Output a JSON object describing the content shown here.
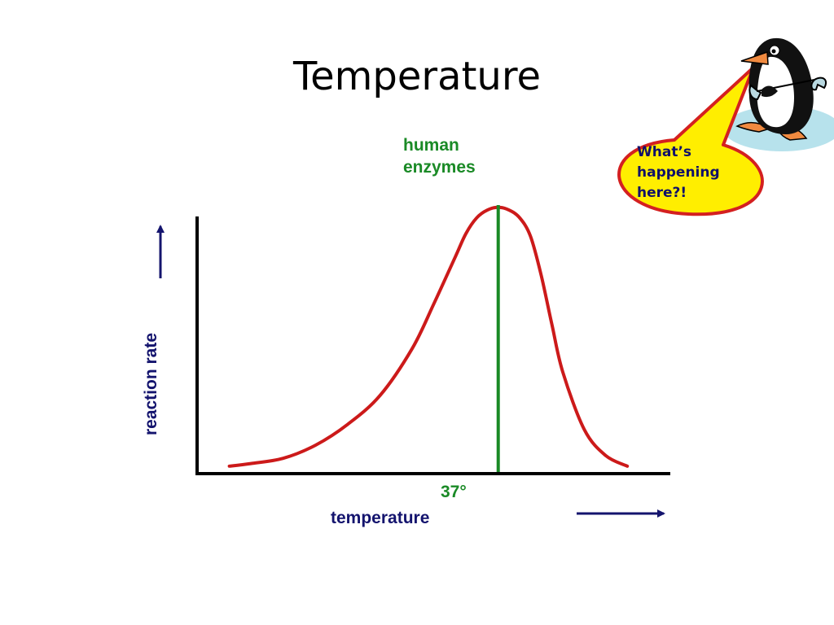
{
  "title": "Temperature",
  "mascot": {
    "bubble_lines": [
      "What’s",
      "happening",
      "here?!"
    ],
    "icon": "penguin-with-wrench-icon",
    "bubble_color": "#ffee00",
    "bubble_border": "#d42020"
  },
  "chart_data": {
    "type": "line",
    "ylabel": "reaction rate",
    "xlabel": "temperature",
    "series_label_lines": [
      "human",
      "enzymes"
    ],
    "marker_value": 37,
    "marker_label": "37°",
    "x": [
      12,
      14,
      17,
      20,
      23,
      26,
      29,
      31,
      33,
      34,
      35,
      36,
      37,
      38,
      39,
      40,
      41,
      42,
      43,
      45,
      47,
      49
    ],
    "values": [
      1,
      2,
      4,
      9,
      17,
      28,
      46,
      63,
      81,
      90,
      96,
      99,
      100,
      99,
      96,
      89,
      74,
      55,
      37,
      15,
      5,
      1
    ],
    "xlim": [
      9,
      53
    ],
    "ylim": [
      0,
      104
    ],
    "colors": {
      "curve": "#cc1a1a",
      "marker": "#1a8a26",
      "axis": "#000000",
      "arrow": "#14146e"
    }
  }
}
